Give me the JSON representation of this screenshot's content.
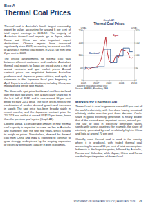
{
  "header": {
    "box": "Box A",
    "title": "Thermal Coal Prices"
  },
  "left_column": [
    "Thermal coal is Australia's fourth largest commodity export by value, accounting for around 6 per cent of total export earnings in 2011/12. The majority of Australia's thermal coal exports go to Japan, while Korea and China are also important export destinations. Chinese imports have increased significantly since 2009, accounting for around one-fifth of Australia's thermal coal exports in 2012, up from only 2 per cent in 2008.",
    "The pricing arrangements for thermal coal vary between different customers and markets. Australia's thermal coal exports to Japan are priced using a mix of annual contracts and spot market prices. Annual contract prices are negotiated between Australian producers and Japanese power utilities, and apply to shipments in the Japanese fiscal year beginning in April. Exports to other destinations, including China, are mostly priced off the spot market.",
    "The Newcastle spot price for thermal coal has declined over the past two years, with a particularly sharp fall in the first half of 2012, and is now around 30 per cent below its early 2011 peak. The fall in prices reflects the combination of weaker demand growth and increases in supply. The spot price has been broadly stable in recent months, and the Japanese contract price for 2012/13 was settled at around US$115 per tonne, lower than the previous year's price (Graph A1).",
    "Looking ahead, a considerable amount of new thermal coal capacity is expected to come on line in Australia and elsewhere over the next few years, which is likely to weigh on prices. Nonetheless, demand for thermal coal from China and India is expected to continue to grow strongly, underpinned by the ongoing expansion of electricity generation capacity in both economies."
  ],
  "right_heading": "Markets for Thermal Coal",
  "right_column": [
    "Thermal coal is used to generate around 40 per cent of the world's electricity, with this share having remained relatively stable over the past three decades. Coal's share in global electricity generation is nearly double that of the second most important source, natural gas. The use of coal in electricity generation varies significantly across countries; for example, the share of electricity generated by coal is relatively high in China and India at around 70 per cent.",
    "Globally, most thermal coal is used in the country where it is produced, with traded thermal coal accounting for around 15 per cent of total consumption. Indonesia is the largest exporter, followed by Australia, Russia and Colombia, while Japan, China and Korea are the largest importers of thermal coal."
  ],
  "footer": {
    "text": "STATEMENT ON MONETARY POLICY | FEBRUARY 2013",
    "page": "43"
  },
  "chart_data": {
    "type": "line",
    "graph_number": "Graph A1",
    "title": "Thermal Coal Prices",
    "y_label": "US$/t",
    "y2_label": "US$/t",
    "x": [
      2005,
      2005.25,
      2005.5,
      2005.75,
      2006,
      2006.25,
      2006.5,
      2006.75,
      2007,
      2007.25,
      2007.5,
      2007.75,
      2008,
      2008.25,
      2008.5,
      2008.75,
      2009,
      2009.25,
      2009.5,
      2009.75,
      2010,
      2010.25,
      2010.5,
      2010.75,
      2011,
      2011.25,
      2011.5,
      2011.75,
      2012,
      2012.25,
      2012.5,
      2012.75
    ],
    "series": [
      {
        "name": "Spot",
        "color": "#b5121b",
        "line_style": "solid",
        "values": [
          52,
          55,
          50,
          44,
          48,
          51,
          52,
          53,
          55,
          60,
          68,
          85,
          110,
          140,
          175,
          110,
          80,
          70,
          72,
          75,
          95,
          98,
          92,
          110,
          125,
          122,
          120,
          118,
          112,
          95,
          88,
          92
        ]
      },
      {
        "name": "Contract*",
        "color": "#1f4e8c",
        "line_style": "step",
        "values": [
          45,
          53,
          53,
          53,
          53,
          52.5,
          52.5,
          52.5,
          52.5,
          55.5,
          55.5,
          55.5,
          55.5,
          125,
          125,
          125,
          125,
          71,
          71,
          71,
          71,
          98,
          98,
          98,
          98,
          130,
          130,
          130,
          130,
          115,
          115,
          115
        ]
      }
    ],
    "xlim": [
      2005,
      2013
    ],
    "xticks": [
      2005,
      2007,
      2009,
      2011,
      2013
    ],
    "ylim": [
      0,
      200
    ],
    "yticks": [
      0,
      50,
      100,
      150,
      200
    ],
    "y2lim": [
      0,
      200
    ],
    "y2ticks": [
      0,
      50,
      100,
      150,
      200
    ],
    "grid": true,
    "notes": [
      "* Japanese fiscal year contract price",
      "Sources: ABARES; Bloomberg; RBA"
    ]
  }
}
